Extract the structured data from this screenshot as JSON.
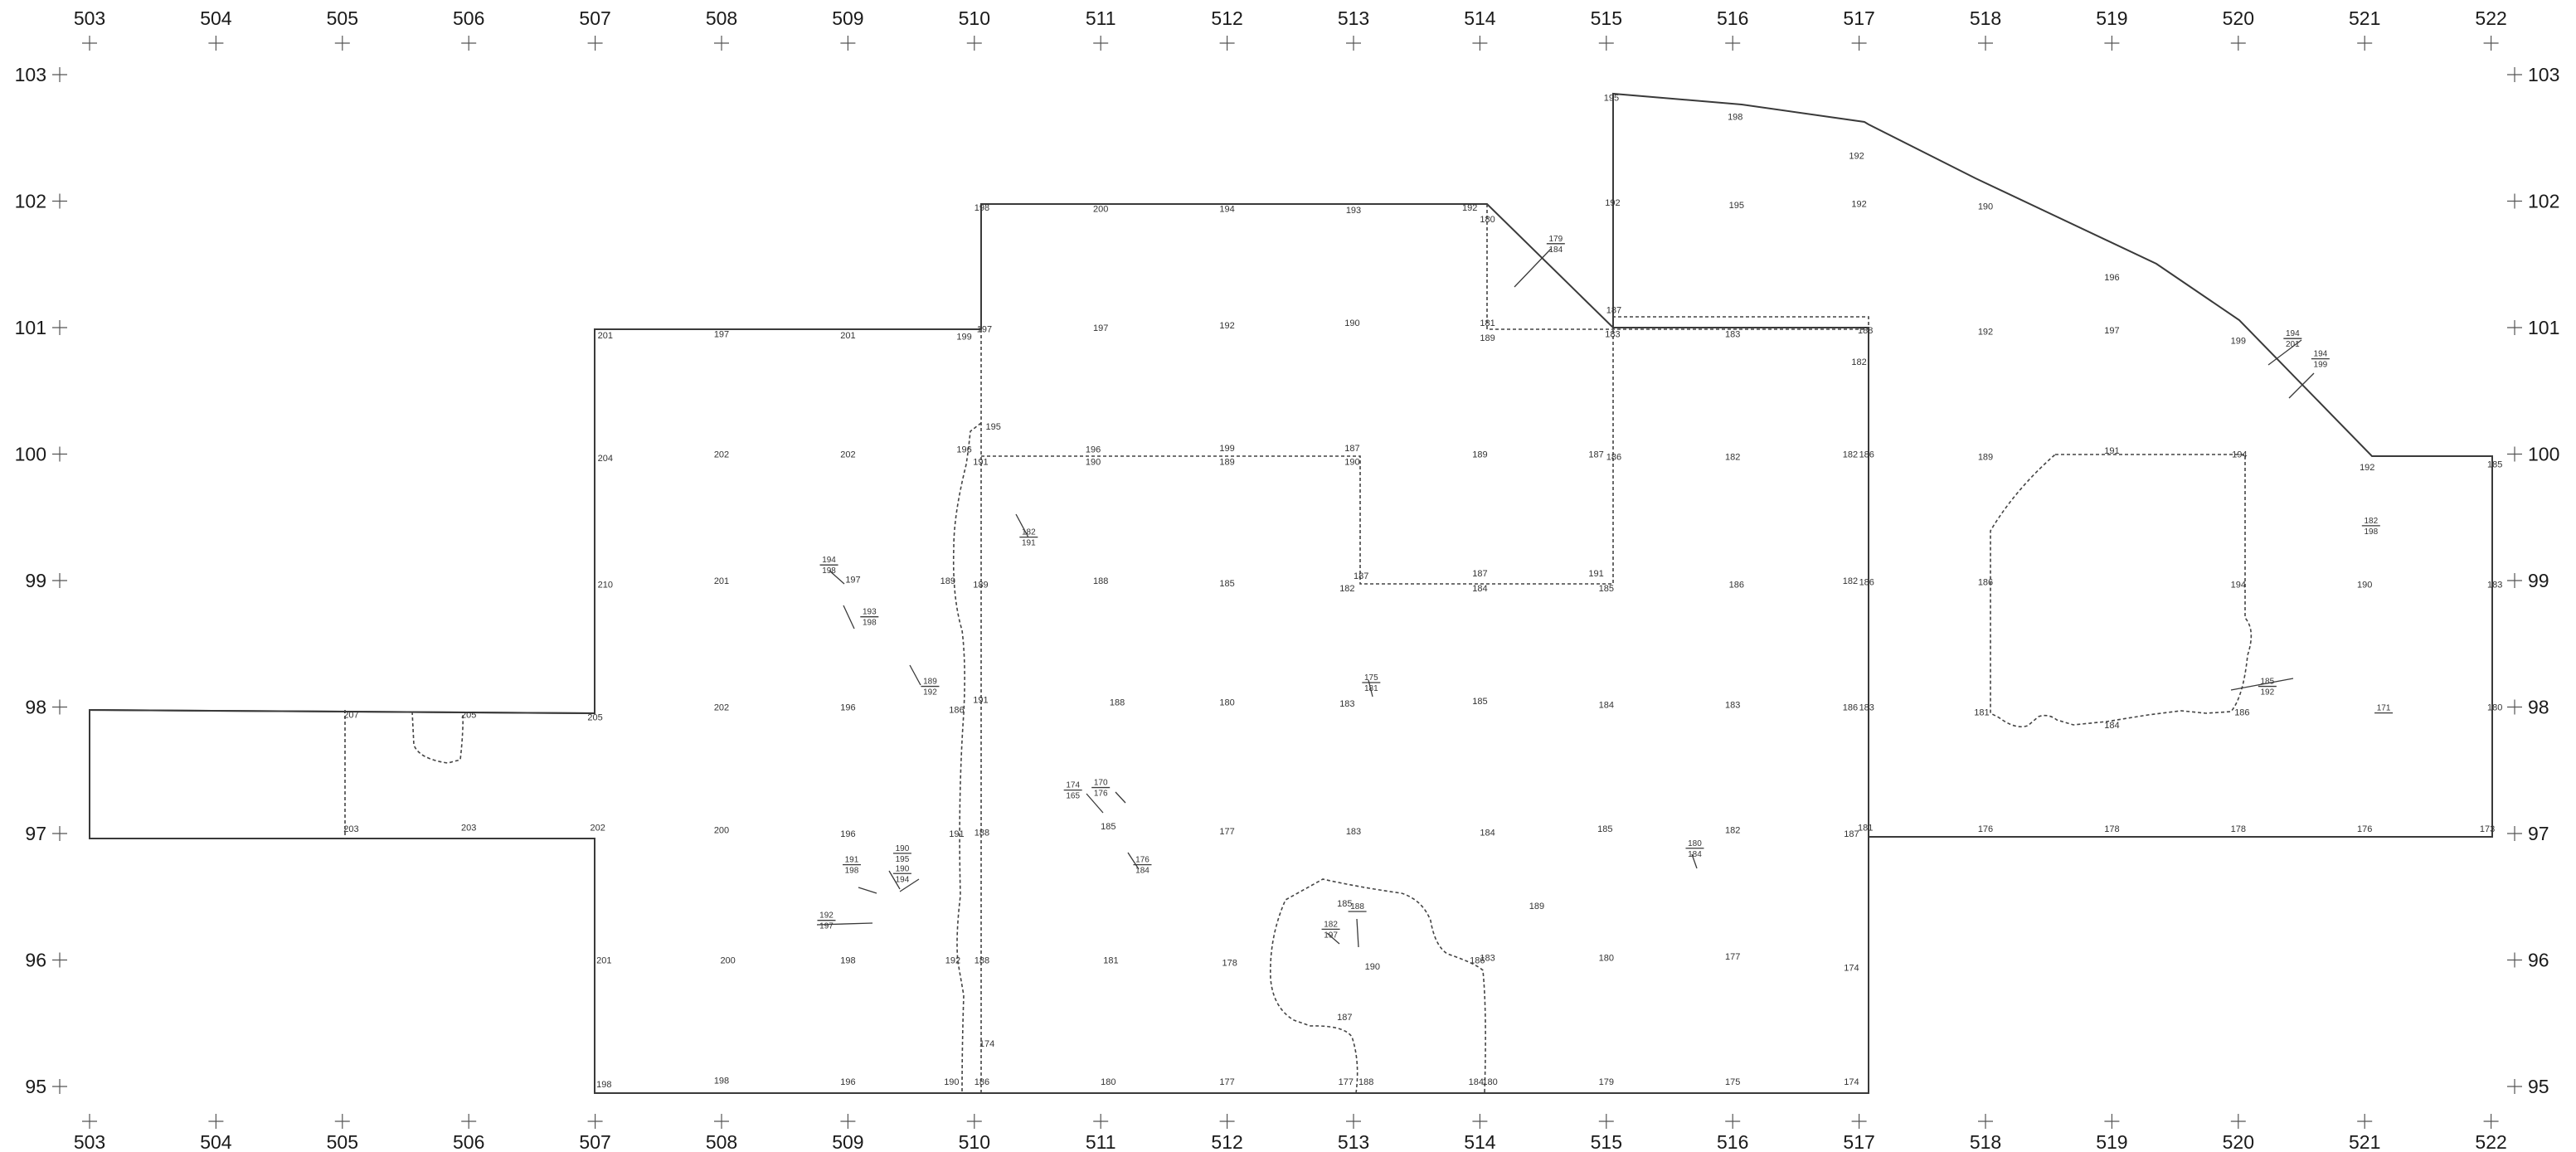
{
  "colors": {
    "background": "#ffffff",
    "line": "#3a3a3a",
    "text": "#1a1a1a"
  },
  "grid": {
    "x_labels": [
      "503",
      "504",
      "505",
      "506",
      "507",
      "508",
      "509",
      "510",
      "511",
      "512",
      "513",
      "514",
      "515",
      "516",
      "517",
      "518",
      "519",
      "520",
      "521",
      "522"
    ],
    "y_labels": [
      "103",
      "102",
      "101",
      "100",
      "99",
      "98",
      "97",
      "96",
      "95"
    ]
  },
  "elevations": [
    {
      "x": 515.04,
      "y": 102.82,
      "t": "195"
    },
    {
      "x": 516.02,
      "y": 102.67,
      "t": "198"
    },
    {
      "x": 516.98,
      "y": 102.36,
      "t": "192"
    },
    {
      "x": 510.06,
      "y": 101.95,
      "t": "198"
    },
    {
      "x": 511.0,
      "y": 101.94,
      "t": "200"
    },
    {
      "x": 512.0,
      "y": 101.94,
      "t": "194"
    },
    {
      "x": 513.0,
      "y": 101.93,
      "t": "193"
    },
    {
      "x": 513.92,
      "y": 101.95,
      "t": "192"
    },
    {
      "x": 514.06,
      "y": 101.86,
      "t": "180"
    },
    {
      "x": 515.05,
      "y": 101.99,
      "t": "192"
    },
    {
      "x": 516.03,
      "y": 101.97,
      "t": "195"
    },
    {
      "x": 517.0,
      "y": 101.98,
      "t": "192"
    },
    {
      "x": 518.0,
      "y": 101.96,
      "t": "190"
    },
    {
      "x": 519.0,
      "y": 101.4,
      "t": "196"
    },
    {
      "x": 507.08,
      "y": 100.94,
      "t": "201"
    },
    {
      "x": 508.0,
      "y": 100.95,
      "t": "197"
    },
    {
      "x": 509.0,
      "y": 100.94,
      "t": "201"
    },
    {
      "x": 509.92,
      "y": 100.93,
      "t": "199"
    },
    {
      "x": 510.08,
      "y": 100.99,
      "t": "197"
    },
    {
      "x": 511.0,
      "y": 101.0,
      "t": "197"
    },
    {
      "x": 512.0,
      "y": 101.02,
      "t": "192"
    },
    {
      "x": 512.99,
      "y": 101.04,
      "t": "190"
    },
    {
      "x": 514.06,
      "y": 101.04,
      "t": "181"
    },
    {
      "x": 514.06,
      "y": 100.92,
      "t": "189"
    },
    {
      "x": 515.06,
      "y": 101.14,
      "t": "187"
    },
    {
      "x": 515.05,
      "y": 100.95,
      "t": "183"
    },
    {
      "x": 516.0,
      "y": 100.95,
      "t": "183"
    },
    {
      "x": 517.05,
      "y": 100.98,
      "t": "188"
    },
    {
      "x": 517.0,
      "y": 100.73,
      "t": "182"
    },
    {
      "x": 518.0,
      "y": 100.97,
      "t": "192"
    },
    {
      "x": 519.0,
      "y": 100.98,
      "t": "197"
    },
    {
      "x": 520.0,
      "y": 100.9,
      "t": "199"
    },
    {
      "x": 510.15,
      "y": 100.22,
      "t": "195"
    },
    {
      "x": 507.08,
      "y": 99.97,
      "t": "204"
    },
    {
      "x": 508.0,
      "y": 100.0,
      "t": "202"
    },
    {
      "x": 509.0,
      "y": 100.0,
      "t": "202"
    },
    {
      "x": 509.92,
      "y": 100.04,
      "t": "196"
    },
    {
      "x": 510.05,
      "y": 99.94,
      "t": "191"
    },
    {
      "x": 510.94,
      "y": 100.04,
      "t": "196"
    },
    {
      "x": 510.94,
      "y": 99.94,
      "t": "190"
    },
    {
      "x": 512.0,
      "y": 100.05,
      "t": "199"
    },
    {
      "x": 512.0,
      "y": 99.94,
      "t": "189"
    },
    {
      "x": 512.99,
      "y": 100.05,
      "t": "187"
    },
    {
      "x": 512.99,
      "y": 99.94,
      "t": "190"
    },
    {
      "x": 514.0,
      "y": 100.0,
      "t": "189"
    },
    {
      "x": 514.92,
      "y": 100.0,
      "t": "187"
    },
    {
      "x": 515.06,
      "y": 99.98,
      "t": "186"
    },
    {
      "x": 516.0,
      "y": 99.98,
      "t": "182"
    },
    {
      "x": 516.93,
      "y": 100.0,
      "t": "182"
    },
    {
      "x": 517.06,
      "y": 100.0,
      "t": "186"
    },
    {
      "x": 518.0,
      "y": 99.98,
      "t": "189"
    },
    {
      "x": 519.0,
      "y": 100.03,
      "t": "191"
    },
    {
      "x": 520.01,
      "y": 100.0,
      "t": "194"
    },
    {
      "x": 521.02,
      "y": 99.9,
      "t": "192"
    },
    {
      "x": 522.03,
      "y": 99.92,
      "t": "185"
    },
    {
      "x": 507.08,
      "y": 98.97,
      "t": "210"
    },
    {
      "x": 508.0,
      "y": 99.0,
      "t": "201"
    },
    {
      "x": 509.04,
      "y": 99.01,
      "t": "197"
    },
    {
      "x": 509.79,
      "y": 99.0,
      "t": "189"
    },
    {
      "x": 510.05,
      "y": 98.97,
      "t": "189"
    },
    {
      "x": 511.0,
      "y": 99.0,
      "t": "188"
    },
    {
      "x": 512.0,
      "y": 98.98,
      "t": "185"
    },
    {
      "x": 513.06,
      "y": 99.04,
      "t": "187"
    },
    {
      "x": 512.95,
      "y": 98.94,
      "t": "182"
    },
    {
      "x": 514.0,
      "y": 99.06,
      "t": "187"
    },
    {
      "x": 514.0,
      "y": 98.94,
      "t": "184"
    },
    {
      "x": 514.92,
      "y": 99.06,
      "t": "191"
    },
    {
      "x": 515.0,
      "y": 98.94,
      "t": "185"
    },
    {
      "x": 516.03,
      "y": 98.97,
      "t": "186"
    },
    {
      "x": 516.93,
      "y": 99.0,
      "t": "182"
    },
    {
      "x": 517.06,
      "y": 98.99,
      "t": "186"
    },
    {
      "x": 518.0,
      "y": 98.99,
      "t": "186"
    },
    {
      "x": 520.0,
      "y": 98.97,
      "t": "194"
    },
    {
      "x": 521.0,
      "y": 98.97,
      "t": "190"
    },
    {
      "x": 522.03,
      "y": 98.97,
      "t": "183"
    },
    {
      "x": 508.0,
      "y": 98.0,
      "t": "202"
    },
    {
      "x": 509.0,
      "y": 98.0,
      "t": "196"
    },
    {
      "x": 509.86,
      "y": 97.98,
      "t": "186"
    },
    {
      "x": 510.05,
      "y": 98.06,
      "t": "191"
    },
    {
      "x": 511.13,
      "y": 98.04,
      "t": "188"
    },
    {
      "x": 512.0,
      "y": 98.04,
      "t": "180"
    },
    {
      "x": 512.95,
      "y": 98.03,
      "t": "183"
    },
    {
      "x": 514.0,
      "y": 98.05,
      "t": "185"
    },
    {
      "x": 515.0,
      "y": 98.02,
      "t": "184"
    },
    {
      "x": 516.0,
      "y": 98.02,
      "t": "183"
    },
    {
      "x": 516.93,
      "y": 98.0,
      "t": "186"
    },
    {
      "x": 517.06,
      "y": 98.0,
      "t": "183"
    },
    {
      "x": 517.97,
      "y": 97.96,
      "t": "181"
    },
    {
      "x": 519.0,
      "y": 97.86,
      "t": "184"
    },
    {
      "x": 520.03,
      "y": 97.96,
      "t": "186"
    },
    {
      "x": 522.03,
      "y": 98.0,
      "t": "180"
    },
    {
      "x": 505.07,
      "y": 97.94,
      "t": "207"
    },
    {
      "x": 506.0,
      "y": 97.94,
      "t": "205"
    },
    {
      "x": 507.0,
      "y": 97.92,
      "t": "205"
    },
    {
      "x": 505.07,
      "y": 97.04,
      "t": "203"
    },
    {
      "x": 506.0,
      "y": 97.05,
      "t": "203"
    },
    {
      "x": 507.02,
      "y": 97.05,
      "t": "202"
    },
    {
      "x": 508.0,
      "y": 97.03,
      "t": "200"
    },
    {
      "x": 509.0,
      "y": 97.0,
      "t": "196"
    },
    {
      "x": 509.86,
      "y": 97.0,
      "t": "191"
    },
    {
      "x": 510.06,
      "y": 97.01,
      "t": "188"
    },
    {
      "x": 511.06,
      "y": 97.06,
      "t": "185"
    },
    {
      "x": 512.0,
      "y": 97.02,
      "t": "177"
    },
    {
      "x": 513.0,
      "y": 97.02,
      "t": "183"
    },
    {
      "x": 514.06,
      "y": 97.01,
      "t": "184"
    },
    {
      "x": 514.99,
      "y": 97.04,
      "t": "185"
    },
    {
      "x": 516.0,
      "y": 97.03,
      "t": "182"
    },
    {
      "x": 517.05,
      "y": 97.05,
      "t": "181"
    },
    {
      "x": 516.94,
      "y": 97.0,
      "t": "187"
    },
    {
      "x": 518.0,
      "y": 97.04,
      "t": "176"
    },
    {
      "x": 519.0,
      "y": 97.04,
      "t": "178"
    },
    {
      "x": 520.0,
      "y": 97.04,
      "t": "178"
    },
    {
      "x": 521.0,
      "y": 97.04,
      "t": "176"
    },
    {
      "x": 521.97,
      "y": 97.04,
      "t": "173"
    },
    {
      "x": 512.93,
      "y": 96.45,
      "t": "185"
    },
    {
      "x": 514.45,
      "y": 96.43,
      "t": "189"
    },
    {
      "x": 507.07,
      "y": 96.0,
      "t": "201"
    },
    {
      "x": 508.05,
      "y": 96.0,
      "t": "200"
    },
    {
      "x": 509.0,
      "y": 96.0,
      "t": "198"
    },
    {
      "x": 509.83,
      "y": 96.0,
      "t": "192"
    },
    {
      "x": 510.06,
      "y": 96.0,
      "t": "188"
    },
    {
      "x": 511.08,
      "y": 96.0,
      "t": "181"
    },
    {
      "x": 512.02,
      "y": 95.98,
      "t": "178"
    },
    {
      "x": 513.15,
      "y": 95.95,
      "t": "190"
    },
    {
      "x": 513.98,
      "y": 96.0,
      "t": "186"
    },
    {
      "x": 514.06,
      "y": 96.02,
      "t": "183"
    },
    {
      "x": 515.0,
      "y": 96.02,
      "t": "180"
    },
    {
      "x": 516.0,
      "y": 96.03,
      "t": "177"
    },
    {
      "x": 516.94,
      "y": 95.94,
      "t": "174"
    },
    {
      "x": 512.93,
      "y": 95.55,
      "t": "187"
    },
    {
      "x": 507.07,
      "y": 95.02,
      "t": "198"
    },
    {
      "x": 508.0,
      "y": 95.05,
      "t": "198"
    },
    {
      "x": 509.0,
      "y": 95.04,
      "t": "196"
    },
    {
      "x": 509.82,
      "y": 95.04,
      "t": "190"
    },
    {
      "x": 510.06,
      "y": 95.04,
      "t": "186"
    },
    {
      "x": 511.06,
      "y": 95.04,
      "t": "180"
    },
    {
      "x": 512.0,
      "y": 95.04,
      "t": "177"
    },
    {
      "x": 512.94,
      "y": 95.04,
      "t": "177"
    },
    {
      "x": 513.1,
      "y": 95.04,
      "t": "188"
    },
    {
      "x": 513.97,
      "y": 95.04,
      "t": "184"
    },
    {
      "x": 514.08,
      "y": 95.04,
      "t": "180"
    },
    {
      "x": 515.0,
      "y": 95.04,
      "t": "179"
    },
    {
      "x": 516.0,
      "y": 95.04,
      "t": "175"
    },
    {
      "x": 516.94,
      "y": 95.04,
      "t": "174"
    },
    {
      "x": 510.1,
      "y": 95.34,
      "t": "174"
    }
  ],
  "fractions": [
    {
      "x": 514.6,
      "y": 101.67,
      "top": "179",
      "bottom": "184"
    },
    {
      "x": 520.43,
      "y": 100.92,
      "top": "194",
      "bottom": "201"
    },
    {
      "x": 520.65,
      "y": 100.76,
      "top": "194",
      "bottom": "199"
    },
    {
      "x": 510.43,
      "y": 99.35,
      "top": "182",
      "bottom": "191"
    },
    {
      "x": 508.85,
      "y": 99.13,
      "top": "194",
      "bottom": "198"
    },
    {
      "x": 509.17,
      "y": 98.72,
      "top": "193",
      "bottom": "198"
    },
    {
      "x": 509.65,
      "y": 98.17,
      "top": "189",
      "bottom": "192"
    },
    {
      "x": 513.14,
      "y": 98.2,
      "top": "175",
      "bottom": "181"
    },
    {
      "x": 521.05,
      "y": 99.44,
      "top": "182",
      "bottom": "198"
    },
    {
      "x": 520.23,
      "y": 98.17,
      "top": "185",
      "bottom": "192"
    },
    {
      "x": 521.15,
      "y": 97.96,
      "top": "171",
      "bottom": ""
    },
    {
      "x": 510.78,
      "y": 97.35,
      "top": "174",
      "bottom": "165"
    },
    {
      "x": 511.0,
      "y": 97.37,
      "top": "170",
      "bottom": "176"
    },
    {
      "x": 509.43,
      "y": 96.85,
      "top": "190",
      "bottom": "195"
    },
    {
      "x": 509.03,
      "y": 96.76,
      "top": "191",
      "bottom": "198"
    },
    {
      "x": 509.43,
      "y": 96.69,
      "top": "190",
      "bottom": "194"
    },
    {
      "x": 511.33,
      "y": 96.76,
      "top": "176",
      "bottom": "184"
    },
    {
      "x": 515.7,
      "y": 96.89,
      "top": "180",
      "bottom": "184"
    },
    {
      "x": 513.03,
      "y": 96.39,
      "top": "188",
      "bottom": ""
    },
    {
      "x": 512.82,
      "y": 96.25,
      "top": "182",
      "bottom": "197"
    },
    {
      "x": 508.83,
      "y": 96.32,
      "top": "192",
      "bottom": "197"
    }
  ]
}
